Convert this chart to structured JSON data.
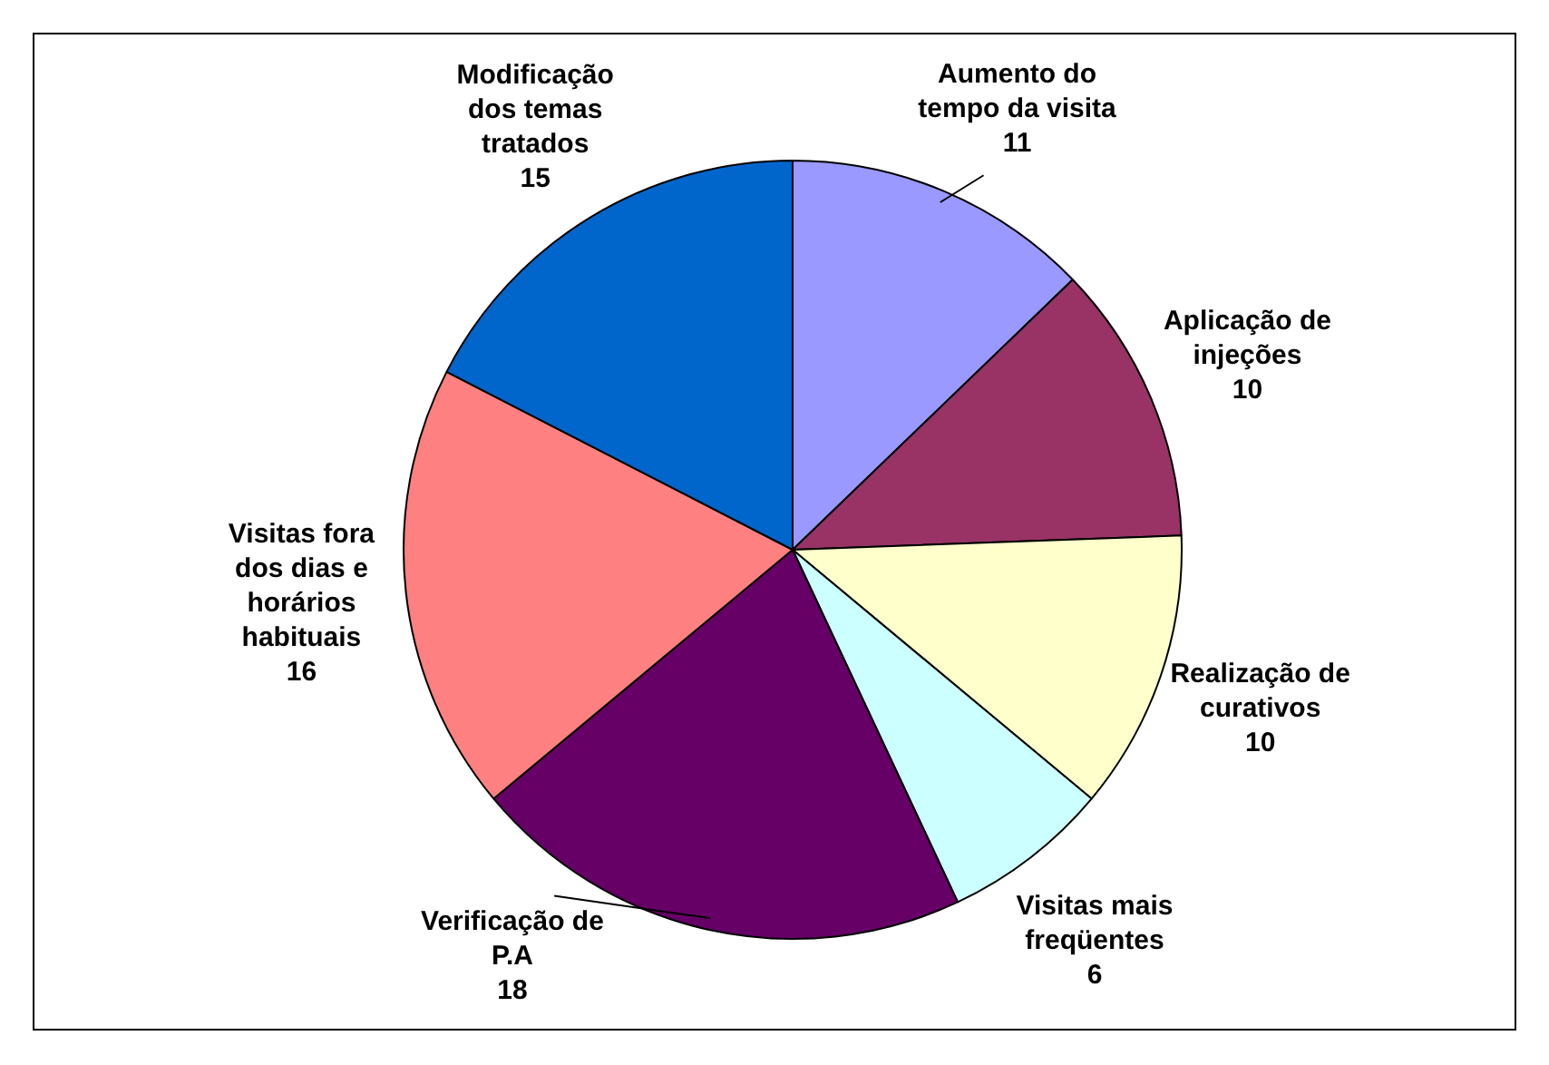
{
  "chart_data": {
    "type": "pie",
    "categories": [
      "Aumento do tempo da visita",
      "Aplicação de injeções",
      "Realização de curativos",
      "Visitas mais freqüentes",
      "Verificação de P.A",
      "Visitas fora dos dias e horários habituais",
      "Modificação dos temas tratados"
    ],
    "values": [
      11,
      10,
      10,
      6,
      18,
      16,
      15
    ],
    "colors": [
      "#9999ff",
      "#993366",
      "#ffffcc",
      "#ccffff",
      "#660066",
      "#ff8080",
      "#0066cc"
    ],
    "data_labels": true,
    "legend": false
  }
}
